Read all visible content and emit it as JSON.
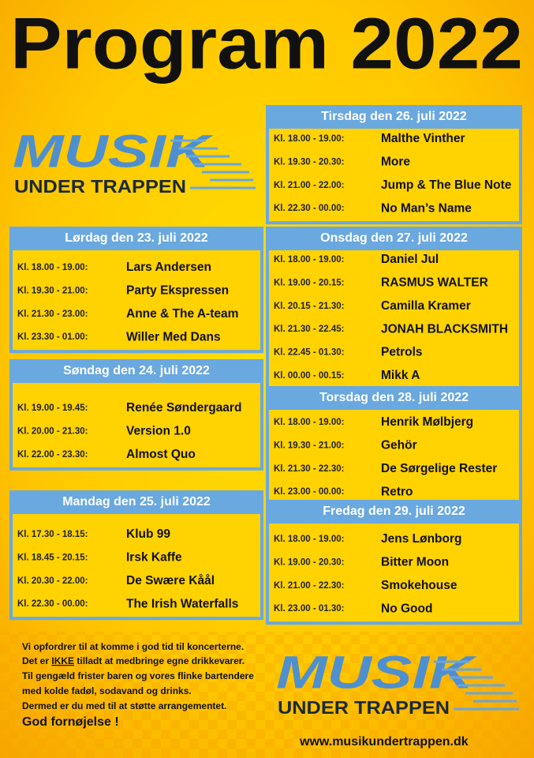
{
  "title": "Program 2022",
  "logo": {
    "word": "MUSIK",
    "subtitle": "UNDER TRAPPEN"
  },
  "days": [
    {
      "heading": "Lørdag den 23. juli 2022",
      "events": [
        {
          "time": "Kl. 18.00 - 19.00:",
          "act": "Lars Andersen"
        },
        {
          "time": "Kl. 19.30 - 21.00:",
          "act": "Party Ekspressen"
        },
        {
          "time": "Kl. 21.30 - 23.00:",
          "act": "Anne & The A-team"
        },
        {
          "time": "Kl. 23.30 - 01.00:",
          "act": "Willer Med Dans"
        }
      ]
    },
    {
      "heading": "Søndag den 24. juli 2022",
      "events": [
        {
          "time": "Kl. 19.00 - 19.45:",
          "act": "Renée Søndergaard"
        },
        {
          "time": "Kl. 20.00 - 21.30:",
          "act": "Version 1.0"
        },
        {
          "time": "Kl. 22.00 - 23.30:",
          "act": "Almost Quo"
        }
      ]
    },
    {
      "heading": "Mandag den 25. juli 2022",
      "events": [
        {
          "time": "Kl. 17.30 - 18.15:",
          "act": "Klub 99"
        },
        {
          "time": "Kl. 18.45 - 20.15:",
          "act": "Irsk Kaffe"
        },
        {
          "time": "Kl. 20.30 - 22.00:",
          "act": "De Swære Kåål"
        },
        {
          "time": "Kl. 22.30 - 00.00:",
          "act": "The Irish Waterfalls"
        }
      ]
    },
    {
      "heading": "Tirsdag den 26. juli 2022",
      "events": [
        {
          "time": "Kl. 18.00 - 19.00:",
          "act": "Malthe Vinther"
        },
        {
          "time": "Kl. 19.30 - 20.30:",
          "act": "More"
        },
        {
          "time": "Kl. 21.00 - 22.00:",
          "act": "Jump & The Blue Note"
        },
        {
          "time": "Kl. 22.30 - 00.00:",
          "act": "No Man’s Name"
        }
      ]
    },
    {
      "heading": "Onsdag den 27. juli 2022",
      "events": [
        {
          "time": "Kl. 18.00 - 19.00:",
          "act": "Daniel Jul"
        },
        {
          "time": "Kl. 19.00 - 20.15:",
          "act": "RASMUS WALTER"
        },
        {
          "time": "Kl. 20.15 - 21.30:",
          "act": "Camilla Kramer"
        },
        {
          "time": "Kl. 21.30 - 22.45:",
          "act": "JONAH BLACKSMITH"
        },
        {
          "time": "Kl. 22.45 - 01.30:",
          "act": "Petrols"
        },
        {
          "time": "Kl. 00.00 - 00.15:",
          "act": "Mikk A"
        }
      ]
    },
    {
      "heading": "Torsdag den 28. juli 2022",
      "events": [
        {
          "time": "Kl. 18.00 - 19.00:",
          "act": "Henrik Mølbjerg"
        },
        {
          "time": "Kl. 19.30 - 21.00:",
          "act": "Gehör"
        },
        {
          "time": "Kl. 21.30 - 22.30:",
          "act": "De Sørgelige Rester"
        },
        {
          "time": "Kl. 23.00 - 00.00:",
          "act": "Retro"
        }
      ]
    },
    {
      "heading": "Fredag den 29. juli 2022",
      "events": [
        {
          "time": "Kl. 18.00 - 19.00:",
          "act": "Jens Lønborg"
        },
        {
          "time": "Kl. 19.00 - 20.30:",
          "act": "Bitter Moon"
        },
        {
          "time": "Kl. 21.00 - 22.30:",
          "act": "Smokehouse"
        },
        {
          "time": "Kl. 23.00 - 01.30:",
          "act": "No Good"
        }
      ]
    }
  ],
  "note": {
    "line1": "Vi opfordrer til at komme i god tid til koncerterne.",
    "line2": [
      "Det er ",
      "IKKE",
      " tilladt at medbringe egne drikkevarer."
    ],
    "line3": "Til gengæld frister baren og vores flinke bartendere",
    "line4": "med kolde fadøl, sodavand og drinks.",
    "line5": "Dermed er du med til at støtte arrangementet."
  },
  "greeting": "God fornøjelse !",
  "website": "www.musikundertrappen.dk"
}
